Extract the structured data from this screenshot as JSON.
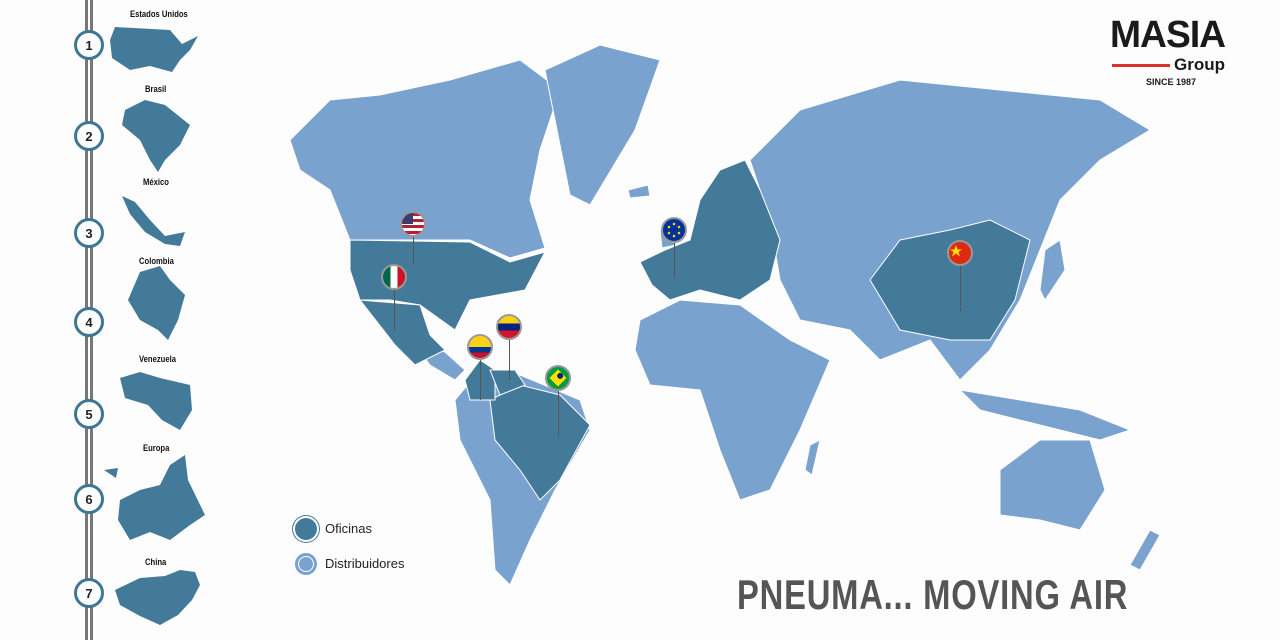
{
  "logo": {
    "name": "MASIA",
    "sub": "Group",
    "since": "SINCE 1987"
  },
  "sidebar": {
    "items": [
      {
        "number": "1",
        "label": "Estados Unidos"
      },
      {
        "number": "2",
        "label": "Brasil"
      },
      {
        "number": "3",
        "label": "México"
      },
      {
        "number": "4",
        "label": "Colombia"
      },
      {
        "number": "5",
        "label": "Venezuela"
      },
      {
        "number": "6",
        "label": "Europa"
      },
      {
        "number": "7",
        "label": "China"
      }
    ]
  },
  "legend": [
    {
      "label": "Oficinas",
      "color": "#447a99"
    },
    {
      "label": "Distribuidores",
      "color": "#7aa2cf"
    }
  ],
  "map": {
    "office_color": "#447a99",
    "distributor_color": "#7aa2cf",
    "flags": [
      "usa-flag",
      "mexico-flag",
      "colombia-flag",
      "venezuela-flag",
      "brazil-flag",
      "eu-flag",
      "china-flag"
    ]
  },
  "slogan": "PNEUMA... MOVING AIR"
}
